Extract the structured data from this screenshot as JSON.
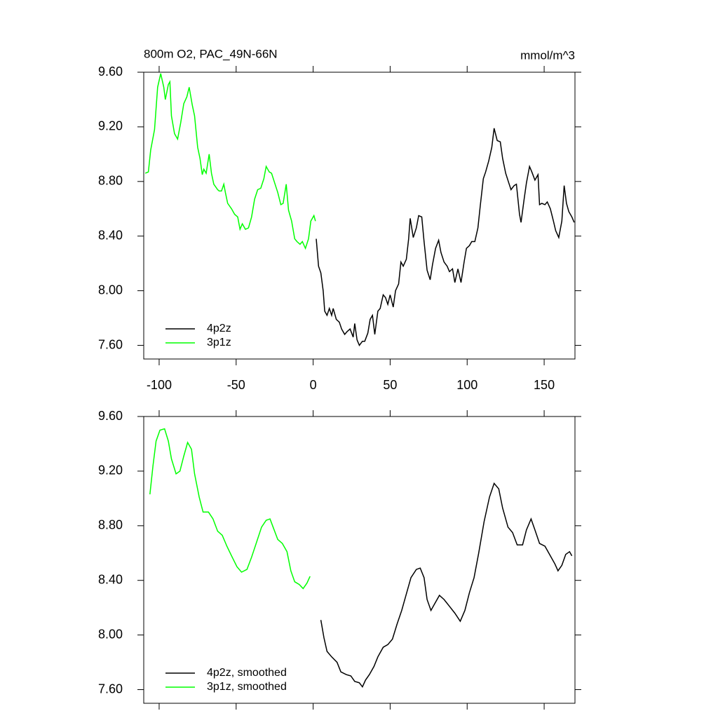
{
  "chart_data": [
    {
      "type": "line",
      "title": "800m O2, PAC_49N-66N",
      "units": "mmol/m^3",
      "xlim": [
        -110,
        170
      ],
      "xticks": [
        -100,
        -50,
        0,
        50,
        100,
        150
      ],
      "xtick_labels": true,
      "ylim": [
        7.5,
        9.6
      ],
      "yticks": [
        {
          "value": 7.6,
          "label": "7.60"
        },
        {
          "value": 8.0,
          "label": "8.00"
        },
        {
          "value": 8.4,
          "label": "8.40"
        },
        {
          "value": 8.8,
          "label": "8.80"
        },
        {
          "value": 9.2,
          "label": "9.20"
        },
        {
          "value": 9.6,
          "label": "9.60"
        }
      ],
      "legend": "lower left",
      "series": [
        {
          "name": "4p2z",
          "color": "#000000",
          "x": [
            2,
            3.5,
            5,
            6.5,
            7.5,
            9,
            10.5,
            12,
            13,
            15,
            17,
            18.5,
            20.5,
            22,
            24,
            26,
            27,
            28.5,
            30,
            32,
            33.5,
            35.5,
            37,
            38.5,
            40,
            42,
            43.5,
            45.5,
            47,
            48.5,
            50,
            52,
            53.5,
            55.5,
            57,
            58.5,
            60.5,
            62,
            63,
            65,
            67,
            68.5,
            70.5,
            72,
            74,
            76,
            77.5,
            79.5,
            81.5,
            83,
            85,
            87,
            88.5,
            90.5,
            92,
            94,
            96,
            98,
            99.5,
            101.5,
            103,
            105,
            107,
            108.5,
            110.5,
            112,
            114,
            116,
            117.5,
            119.5,
            121.5,
            123,
            125,
            127,
            128.5,
            130.5,
            132,
            134,
            135,
            137,
            138.5,
            140.5,
            142,
            144,
            146,
            147,
            148.5,
            150.5,
            152,
            154,
            156,
            157.5,
            159.5,
            161.5,
            163,
            164.5,
            166,
            168,
            169.5
          ],
          "values": [
            8.38,
            8.18,
            8.13,
            8.0,
            7.85,
            7.82,
            7.87,
            7.82,
            7.87,
            7.79,
            7.77,
            7.72,
            7.68,
            7.7,
            7.72,
            7.66,
            7.76,
            7.64,
            7.6,
            7.63,
            7.63,
            7.69,
            7.79,
            7.82,
            7.68,
            7.85,
            7.87,
            7.97,
            7.95,
            7.9,
            7.97,
            7.88,
            8.0,
            8.05,
            8.21,
            8.18,
            8.23,
            8.38,
            8.53,
            8.39,
            8.46,
            8.55,
            8.54,
            8.36,
            8.15,
            8.08,
            8.19,
            8.31,
            8.37,
            8.28,
            8.21,
            8.18,
            8.14,
            8.16,
            8.06,
            8.16,
            8.06,
            8.21,
            8.31,
            8.33,
            8.36,
            8.36,
            8.46,
            8.62,
            8.82,
            8.87,
            8.95,
            9.05,
            9.19,
            9.1,
            9.09,
            8.97,
            8.86,
            8.79,
            8.74,
            8.77,
            8.78,
            8.56,
            8.5,
            8.67,
            8.79,
            8.91,
            8.87,
            8.81,
            8.85,
            8.63,
            8.64,
            8.63,
            8.65,
            8.6,
            8.51,
            8.44,
            8.39,
            8.51,
            8.77,
            8.64,
            8.58,
            8.54,
            8.5
          ]
        },
        {
          "name": "3p1z",
          "color": "#00ff00",
          "x": [
            -109,
            -107,
            -105.5,
            -103,
            -101,
            -99,
            -97,
            -96,
            -94,
            -93,
            -92,
            -90,
            -88,
            -86,
            -84,
            -82,
            -80.5,
            -78.5,
            -77,
            -75,
            -73.5,
            -72,
            -71,
            -69.5,
            -67.5,
            -66,
            -64.5,
            -62,
            -61,
            -59.5,
            -58,
            -57,
            -55.5,
            -53,
            -51,
            -49,
            -47.5,
            -46,
            -44,
            -42,
            -40,
            -38,
            -36,
            -34,
            -32,
            -30.5,
            -28.5,
            -27,
            -25,
            -23,
            -21,
            -19.5,
            -17.5,
            -16,
            -14,
            -12,
            -10.5,
            -8.5,
            -7,
            -5,
            -3,
            -1.5,
            0.5,
            1.5
          ],
          "values": [
            8.86,
            8.87,
            9.03,
            9.18,
            9.49,
            9.59,
            9.49,
            9.4,
            9.51,
            9.53,
            9.28,
            9.15,
            9.11,
            9.23,
            9.37,
            9.42,
            9.49,
            9.36,
            9.28,
            9.05,
            8.97,
            8.85,
            8.89,
            8.86,
            9.0,
            8.86,
            8.78,
            8.74,
            8.73,
            8.73,
            8.78,
            8.72,
            8.64,
            8.6,
            8.56,
            8.54,
            8.45,
            8.49,
            8.45,
            8.46,
            8.54,
            8.67,
            8.74,
            8.75,
            8.82,
            8.91,
            8.87,
            8.86,
            8.79,
            8.72,
            8.63,
            8.64,
            8.78,
            8.59,
            8.51,
            8.38,
            8.36,
            8.34,
            8.36,
            8.31,
            8.38,
            8.51,
            8.55,
            8.51
          ]
        }
      ]
    },
    {
      "type": "line",
      "xlim": [
        -110,
        170
      ],
      "xticks": [
        -100,
        -50,
        0,
        50,
        100,
        150
      ],
      "xtick_labels": false,
      "ylim": [
        7.5,
        9.6
      ],
      "yticks": [
        {
          "value": 7.6,
          "label": "7.60"
        },
        {
          "value": 8.0,
          "label": "8.00"
        },
        {
          "value": 8.4,
          "label": "8.40"
        },
        {
          "value": 8.8,
          "label": "8.80"
        },
        {
          "value": 9.2,
          "label": "9.20"
        },
        {
          "value": 9.6,
          "label": "9.60"
        }
      ],
      "legend": "lower left",
      "series": [
        {
          "name": "4p2z, smoothed",
          "color": "#000000",
          "x": [
            5,
            7,
            9,
            12,
            15.5,
            18,
            21.5,
            24.5,
            27,
            30,
            32,
            34,
            36.5,
            39.5,
            42,
            45.5,
            48.5,
            51.5,
            54.5,
            57.5,
            60.5,
            63.5,
            67,
            69.5,
            72,
            74,
            76.5,
            79,
            82,
            85,
            88.5,
            92,
            95.5,
            98.5,
            101.5,
            104.5,
            107.5,
            111,
            114.5,
            117.5,
            120.5,
            123,
            126.5,
            129.5,
            132.5,
            136,
            138.5,
            141.5,
            144,
            147,
            150.5,
            153.5,
            157,
            159,
            161.5,
            164,
            166.5,
            168
          ],
          "values": [
            8.11,
            7.98,
            7.88,
            7.84,
            7.8,
            7.73,
            7.71,
            7.7,
            7.66,
            7.65,
            7.62,
            7.67,
            7.71,
            7.77,
            7.84,
            7.91,
            7.93,
            7.97,
            8.08,
            8.18,
            8.3,
            8.42,
            8.48,
            8.49,
            8.42,
            8.26,
            8.18,
            8.23,
            8.29,
            8.26,
            8.21,
            8.16,
            8.1,
            8.18,
            8.31,
            8.42,
            8.6,
            8.83,
            9.01,
            9.11,
            9.07,
            8.93,
            8.79,
            8.75,
            8.66,
            8.66,
            8.77,
            8.85,
            8.77,
            8.67,
            8.65,
            8.59,
            8.52,
            8.47,
            8.51,
            8.59,
            8.61,
            8.58
          ]
        },
        {
          "name": "3p1z, smoothed",
          "color": "#00ff00",
          "x": [
            -106,
            -104,
            -102,
            -99.5,
            -96.5,
            -94,
            -92,
            -89,
            -86.5,
            -84,
            -81.5,
            -79,
            -77,
            -74,
            -71.5,
            -68,
            -65,
            -62,
            -59,
            -56,
            -53,
            -49.5,
            -46.5,
            -43,
            -40,
            -37,
            -33.5,
            -30.5,
            -28,
            -26,
            -23,
            -20,
            -17,
            -14.5,
            -12,
            -9,
            -6.5,
            -4,
            -2
          ],
          "values": [
            9.03,
            9.24,
            9.42,
            9.5,
            9.51,
            9.42,
            9.29,
            9.18,
            9.2,
            9.31,
            9.41,
            9.36,
            9.18,
            9.01,
            8.9,
            8.9,
            8.85,
            8.76,
            8.73,
            8.65,
            8.58,
            8.5,
            8.46,
            8.48,
            8.57,
            8.67,
            8.79,
            8.84,
            8.85,
            8.79,
            8.7,
            8.67,
            8.61,
            8.47,
            8.39,
            8.37,
            8.34,
            8.38,
            8.43
          ]
        }
      ]
    }
  ]
}
